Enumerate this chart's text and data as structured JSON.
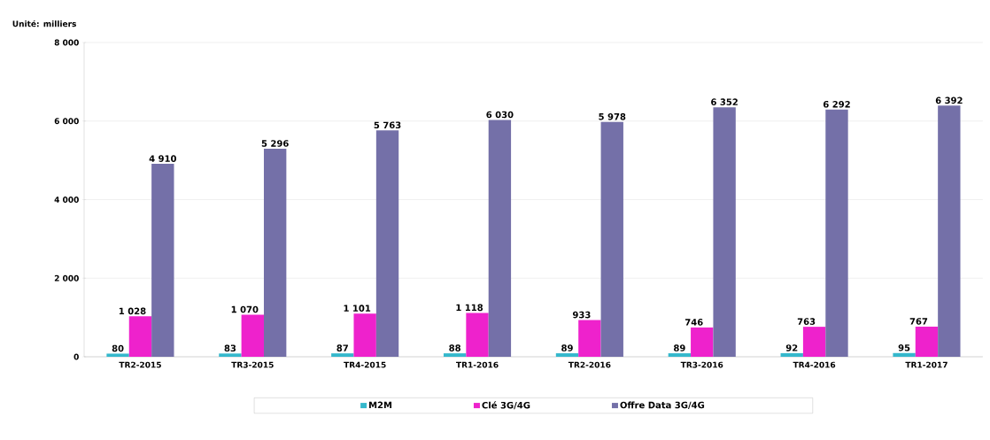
{
  "chart_data": {
    "type": "bar",
    "ylabel": "Unité: milliers",
    "categories": [
      "TR2-2015",
      "TR3-2015",
      "TR4-2015",
      "TR1-2016",
      "TR2-2016",
      "TR3-2016",
      "TR4-2016",
      "TR1-2017"
    ],
    "series": [
      {
        "name": "M2M",
        "color": "#35b8cc",
        "values": [
          80,
          83,
          87,
          88,
          89,
          89,
          92,
          95
        ],
        "value_labels": [
          "80",
          "83",
          "87",
          "88",
          "89",
          "89",
          "92",
          "95"
        ]
      },
      {
        "name": "Clé 3G/4G",
        "color": "#ee22cc",
        "values": [
          1028,
          1070,
          1101,
          1118,
          933,
          746,
          763,
          767
        ],
        "value_labels": [
          "1 028",
          "1 070",
          "1 101",
          "1 118",
          "933",
          "746",
          "763",
          "767"
        ]
      },
      {
        "name": "Offre Data 3G/4G",
        "color": "#7470a8",
        "values": [
          4910,
          5296,
          5763,
          6030,
          5978,
          6352,
          6292,
          6392
        ],
        "value_labels": [
          "4 910",
          "5 296",
          "5 763",
          "6 030",
          "5 978",
          "6 352",
          "6 292",
          "6 392"
        ]
      }
    ],
    "ylim": [
      0,
      8000
    ],
    "yticks": [
      {
        "value": 0,
        "label": "0"
      },
      {
        "value": 2000,
        "label": "2 000"
      },
      {
        "value": 4000,
        "label": "4 000"
      },
      {
        "value": 6000,
        "label": "6 000"
      },
      {
        "value": 8000,
        "label": "8 000"
      }
    ],
    "grid": "y",
    "legend": "bottom"
  }
}
